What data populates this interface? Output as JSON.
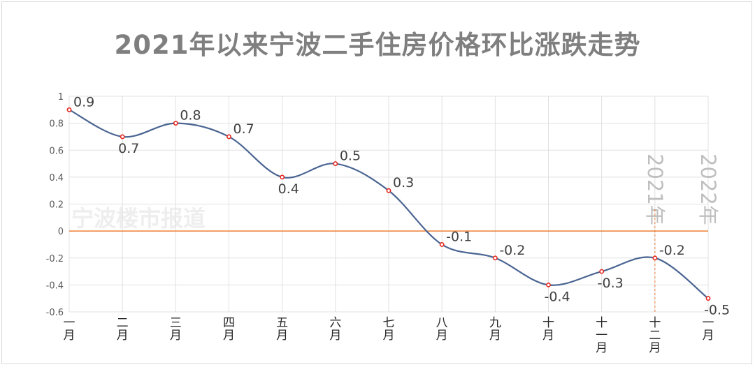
{
  "title": "2021年以来宁波二手住房价格环比涨跌走势",
  "watermark": "宁波楼市报道",
  "colors": {
    "line": "#4a6592",
    "marker_stroke": "#e8281f",
    "zero_line": "#ed7d31",
    "grid": "#e0e0e0",
    "marker_vline": "#ed7d31"
  },
  "chart_data": {
    "type": "line",
    "title": "2021年以来宁波二手住房价格环比涨跌走势",
    "categories": [
      "一月",
      "二月",
      "三月",
      "四月",
      "五月",
      "六月",
      "七月",
      "八月",
      "九月",
      "十月",
      "十一月",
      "十二月",
      "一月"
    ],
    "values": [
      0.9,
      0.7,
      0.8,
      0.7,
      0.4,
      0.5,
      0.3,
      -0.1,
      -0.2,
      -0.4,
      -0.3,
      -0.2,
      -0.5
    ],
    "data_labels": [
      "0.9",
      "0.7",
      "0.8",
      "0.7",
      "0.4",
      "0.5",
      "0.3",
      "-0.1",
      "-0.2",
      "-0.4",
      "-0.3",
      "-0.2",
      "-0.5"
    ],
    "ylim": [
      -0.6,
      1
    ],
    "yticks": [
      1,
      0.8,
      0.6,
      0.4,
      0.2,
      0,
      -0.2,
      -0.4,
      -0.6
    ],
    "ytick_labels": [
      "1",
      "0.8",
      "0.6",
      "0.4",
      "0.2",
      "0",
      "-0.2",
      "-0.4",
      "-0.6"
    ],
    "grid": true,
    "smooth": true,
    "year_markers": [
      {
        "label": "2021年",
        "index": 11
      },
      {
        "label": "2022年",
        "index": 12
      }
    ],
    "xlabel": "",
    "ylabel": ""
  }
}
